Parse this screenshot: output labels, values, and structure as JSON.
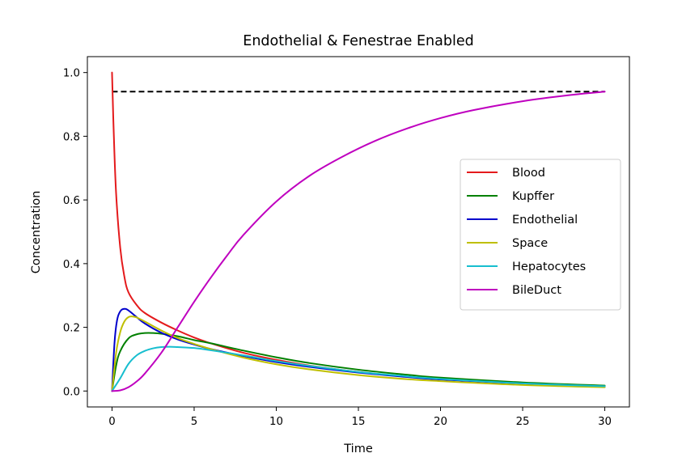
{
  "chart_data": {
    "type": "line",
    "title": "Endothelial & Fenestrae Enabled",
    "xlabel": "Time",
    "ylabel": "Concentration",
    "xlim": [
      -1.5,
      31.5
    ],
    "ylim": [
      -0.05,
      1.05
    ],
    "xticks": [
      0,
      5,
      10,
      15,
      20,
      25,
      30
    ],
    "yticks": [
      0.0,
      0.2,
      0.4,
      0.6,
      0.8,
      1.0
    ],
    "xtick_labels": [
      "0",
      "5",
      "10",
      "15",
      "20",
      "25",
      "30"
    ],
    "ytick_labels": [
      "0.0",
      "0.2",
      "0.4",
      "0.6",
      "0.8",
      "1.0"
    ],
    "grid": false,
    "legend_position": "center-right",
    "reference_line": {
      "y": 0.94,
      "x": [
        0,
        30
      ],
      "style": "dashed",
      "color": "#000000"
    },
    "series": [
      {
        "name": "Blood",
        "color": "#e41a1c",
        "x": [
          0,
          0.1,
          0.25,
          0.5,
          0.75,
          1,
          1.5,
          2,
          3,
          4,
          5,
          6,
          8,
          10,
          12,
          15,
          18,
          20,
          25,
          30
        ],
        "y": [
          1.0,
          0.82,
          0.62,
          0.45,
          0.36,
          0.31,
          0.27,
          0.245,
          0.215,
          0.19,
          0.168,
          0.15,
          0.12,
          0.098,
          0.08,
          0.06,
          0.045,
          0.037,
          0.024,
          0.015
        ]
      },
      {
        "name": "Kupffer",
        "color": "#008000",
        "x": [
          0,
          0.25,
          0.5,
          1,
          1.5,
          2,
          2.5,
          3,
          4,
          5,
          6,
          8,
          10,
          12,
          15,
          18,
          20,
          25,
          30
        ],
        "y": [
          0.0,
          0.08,
          0.125,
          0.165,
          0.178,
          0.182,
          0.182,
          0.18,
          0.172,
          0.16,
          0.15,
          0.127,
          0.106,
          0.088,
          0.067,
          0.051,
          0.042,
          0.027,
          0.017
        ]
      },
      {
        "name": "Endothelial",
        "color": "#0000cc",
        "x": [
          0,
          0.15,
          0.3,
          0.5,
          0.75,
          1,
          1.5,
          2,
          3,
          4,
          5,
          6,
          8,
          10,
          12,
          15,
          18,
          20,
          25,
          30
        ],
        "y": [
          0.0,
          0.15,
          0.22,
          0.25,
          0.258,
          0.253,
          0.232,
          0.212,
          0.183,
          0.162,
          0.146,
          0.132,
          0.11,
          0.091,
          0.076,
          0.058,
          0.044,
          0.036,
          0.023,
          0.014
        ]
      },
      {
        "name": "Space",
        "color": "#bfbf00",
        "x": [
          0,
          0.25,
          0.5,
          0.75,
          1,
          1.25,
          1.5,
          2,
          3,
          4,
          5,
          6,
          8,
          10,
          12,
          15,
          18,
          20,
          25,
          30
        ],
        "y": [
          0.0,
          0.12,
          0.185,
          0.218,
          0.232,
          0.234,
          0.231,
          0.218,
          0.19,
          0.166,
          0.148,
          0.132,
          0.105,
          0.084,
          0.068,
          0.05,
          0.037,
          0.031,
          0.019,
          0.012
        ]
      },
      {
        "name": "Hepatocytes",
        "color": "#17becf",
        "x": [
          0,
          0.5,
          1,
          1.5,
          2,
          2.5,
          3,
          3.5,
          4,
          5,
          6,
          8,
          10,
          12,
          15,
          18,
          20,
          25,
          30
        ],
        "y": [
          0.0,
          0.04,
          0.085,
          0.112,
          0.126,
          0.134,
          0.138,
          0.139,
          0.138,
          0.135,
          0.128,
          0.112,
          0.094,
          0.079,
          0.06,
          0.046,
          0.038,
          0.024,
          0.015
        ]
      },
      {
        "name": "BileDuct",
        "color": "#bf00bf",
        "x": [
          0,
          0.5,
          1,
          1.5,
          2,
          3,
          4,
          5,
          6,
          7,
          8,
          10,
          12,
          14,
          16,
          18,
          20,
          22,
          25,
          28,
          30
        ],
        "y": [
          0.0,
          0.002,
          0.012,
          0.03,
          0.055,
          0.12,
          0.2,
          0.28,
          0.355,
          0.425,
          0.49,
          0.595,
          0.675,
          0.735,
          0.785,
          0.825,
          0.857,
          0.882,
          0.91,
          0.93,
          0.94
        ]
      }
    ]
  }
}
